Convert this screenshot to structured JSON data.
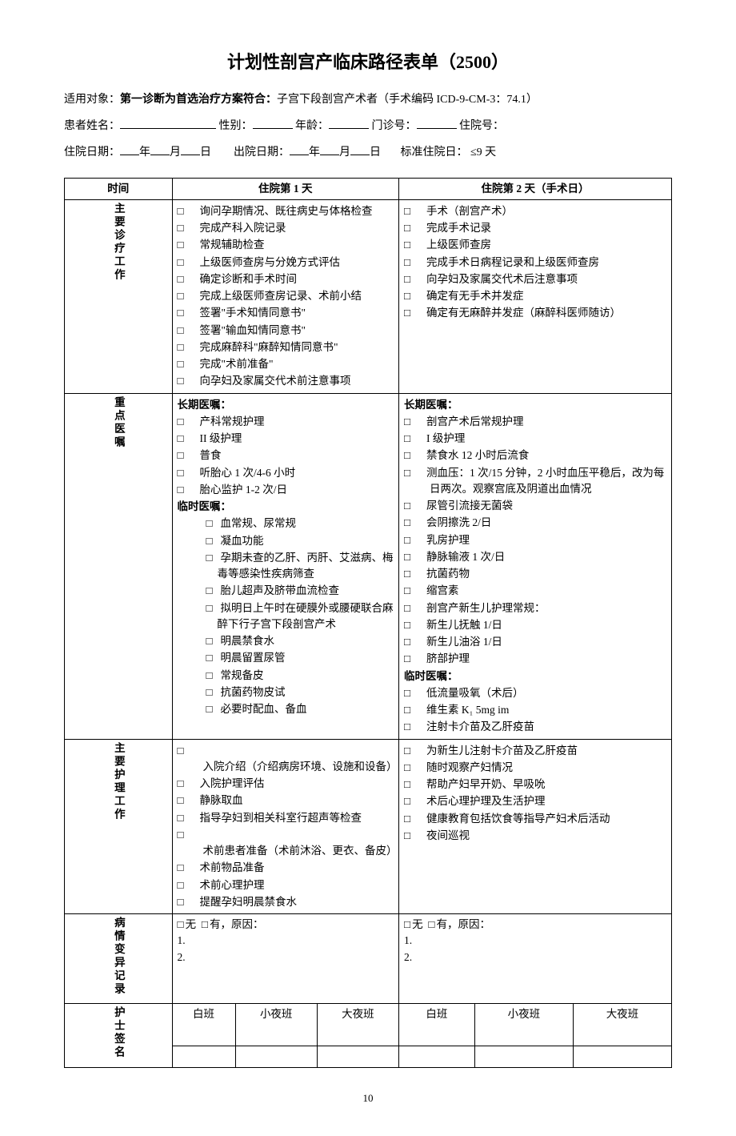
{
  "title": "计划性剖宫产临床路径表单（2500）",
  "applies": {
    "label": "适用对象：",
    "bold": "第一诊断为首选治疗方案符合：",
    "rest": "子宫下段剖宫产术者（手术编码 ICD-9-CM-3：74.1）"
  },
  "fields": {
    "name": "患者姓名：",
    "sex": "性别：",
    "age": "年龄：",
    "outpatient": "门诊号：",
    "inpatient": "住院号：",
    "admit": "住院日期：",
    "discharge": "出院日期：",
    "std": "标准住院日： ≤9 天",
    "y": "年",
    "m": "月",
    "d": "日"
  },
  "columns": {
    "time": "时间",
    "day1": "住院第 1 天",
    "day2": "住院第 2 天（手术日）"
  },
  "rows": {
    "work": "主要诊疗工作",
    "orders": "重点医嘱",
    "nursing": "主要护理工作",
    "variance": "病情变异记录",
    "nurse_sig": "护士签名"
  },
  "day1": {
    "work": [
      "询问孕期情况、既往病史与体格检查",
      "完成产科入院记录",
      "常规辅助检查",
      "上级医师查房与分娩方式评估",
      "确定诊断和手术时间",
      "完成上级医师查房记录、术前小结",
      "签署\"手术知情同意书\"",
      "签署\"输血知情同意书\"",
      "完成麻醉科\"麻醉知情同意书\"",
      "完成\"术前准备\"",
      "向孕妇及家属交代术前注意事项"
    ],
    "long_label": "长期医嘱：",
    "long": [
      "产科常规护理",
      "II 级护理",
      "普食",
      "听胎心 1 次/4-6 小时",
      "胎心监护 1-2 次/日"
    ],
    "temp_label": "临时医嘱：",
    "temp": [
      "血常规、尿常规",
      "凝血功能",
      "孕期未查的乙肝、丙肝、艾滋病、梅毒等感染性疾病筛查",
      "胎儿超声及脐带血流检查",
      "拟明日上午时在硬膜外或腰硬联合麻醉下行子宫下段剖宫产术",
      "明晨禁食水",
      "明晨留置尿管",
      "常规备皮",
      "抗菌药物皮试",
      "必要时配血、备血"
    ],
    "nursing": [
      "入院介绍（介绍病房环境、设施和设备）",
      "入院护理评估",
      "静脉取血",
      "指导孕妇到相关科室行超声等检查",
      "术前患者准备（术前沐浴、更衣、备皮）",
      "术前物品准备",
      "术前心理护理",
      "提醒孕妇明晨禁食水"
    ]
  },
  "day2": {
    "work": [
      "手术（剖宫产术）",
      "完成手术记录",
      "上级医师查房",
      "完成手术日病程记录和上级医师查房",
      "向孕妇及家属交代术后注意事项",
      "确定有无手术并发症",
      "确定有无麻醉并发症（麻醉科医师随访）"
    ],
    "long_label": "长期医嘱：",
    "long": [
      "剖宫产术后常规护理",
      "I 级护理",
      "禁食水 12 小时后流食",
      "测血压：1 次/15 分钟，2 小时血压平稳后，改为每日两次。观察宫底及阴道出血情况",
      "尿管引流接无菌袋",
      "会阴擦洗 2/日",
      "乳房护理",
      "静脉输液 1 次/日",
      "抗菌药物",
      "缩宫素",
      "剖宫产新生儿护理常规：",
      "新生儿抚触  1/日",
      "新生儿油浴  1/日",
      "脐部护理"
    ],
    "temp_label": "临时医嘱：",
    "temp": [
      "低流量吸氧（术后）",
      "维生素 K₁ 5mg im",
      "注射卡介苗及乙肝疫苗"
    ],
    "nursing": [
      "为新生儿注射卡介苗及乙肝疫苗",
      "随时观察产妇情况",
      "帮助产妇早开奶、早吸吮",
      "术后心理护理及生活护理",
      "健康教育包括饮食等指导产妇术后活动",
      "夜间巡视"
    ]
  },
  "variance": {
    "none": "无",
    "yes": "有，原因：",
    "l1": "1.",
    "l2": "2."
  },
  "shifts": {
    "day": "白班",
    "eve": "小夜班",
    "night": "大夜班"
  },
  "page": "10"
}
